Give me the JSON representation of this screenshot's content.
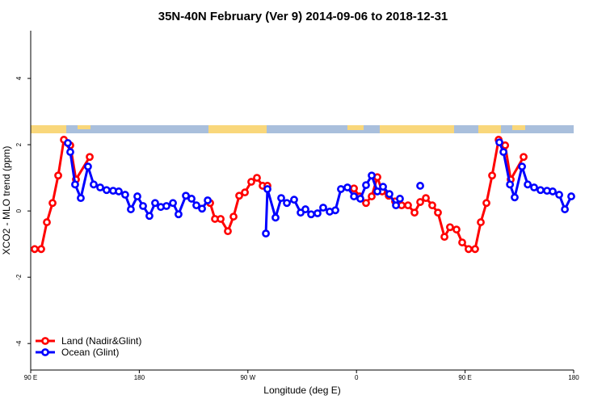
{
  "chart_data": {
    "type": "line",
    "title": "35N-40N February (Ver 9)   2014-09-06 to 2018-12-31",
    "xlabel": "Longitude (deg E)",
    "ylabel": "XCO2 - MLO trend (ppm)",
    "xlim": [
      90,
      540
    ],
    "xticks": [
      {
        "value": 90,
        "label": "90 E"
      },
      180,
      {
        "value": 270,
        "label": "90 W"
      },
      {
        "value": 360,
        "label": "0"
      },
      {
        "value": 450,
        "label": "90 E"
      },
      {
        "value": 540,
        "label": "180"
      }
    ],
    "ylim": [
      -4.8,
      5.44
    ],
    "yticks": [
      -4,
      -2,
      0,
      2,
      4
    ],
    "legend": "bottom left",
    "series": [
      {
        "name": "Land (Nadir&Glint)",
        "color": "#ff0000",
        "x": [
          93.3,
          98.7,
          103.4,
          108.1,
          112.8,
          117.5,
          122.8,
          127.5,
          138.9,
          null,
          238.7,
          242.7,
          247.4,
          253.4,
          258.1,
          262.8,
          267.5,
          272.8,
          277.5,
          282.2,
          286.2,
          null,
          357.9,
          362.5,
          367.9,
          372.6,
          377.3,
          381.3,
          386.7,
          392.0,
          397.4,
          402.7,
          408.1,
          412.8,
          417.5,
          422.8,
          427.5,
          432.9,
          437.5,
          442.9,
          447.6,
          452.9,
          458.3,
          463.0,
          467.7,
          472.4,
          477.8,
          483.2,
          487.8,
          498.5
        ],
        "values": [
          -1.15,
          -1.15,
          -0.34,
          0.24,
          1.07,
          2.15,
          1.98,
          0.95,
          1.63,
          null,
          0.24,
          -0.24,
          -0.24,
          -0.61,
          -0.17,
          0.46,
          0.56,
          0.88,
          1.0,
          0.76,
          0.76,
          null,
          0.68,
          0.44,
          0.24,
          0.44,
          1.02,
          0.59,
          0.46,
          0.29,
          0.17,
          0.17,
          -0.05,
          0.27,
          0.39,
          0.17,
          -0.05,
          -0.78,
          -0.49,
          -0.56,
          -0.95,
          -1.15,
          -1.15,
          -0.34,
          0.24,
          1.07,
          2.15,
          1.98,
          0.95,
          1.63
        ]
      },
      {
        "name": "Ocean (Glint)",
        "color": "#0000ff",
        "x": [
          120.8,
          122.8,
          126.8,
          131.5,
          137.5,
          142.2,
          147.6,
          152.9,
          158.3,
          163.0,
          168.3,
          173.0,
          178.4,
          183.1,
          188.4,
          193.1,
          197.8,
          202.5,
          207.9,
          212.5,
          218.6,
          223.3,
          227.3,
          232.0,
          236.7,
          null,
          284.9,
          286.2,
          292.9,
          297.6,
          302.3,
          308.3,
          313.7,
          317.7,
          322.4,
          327.7,
          332.4,
          337.8,
          342.5,
          347.1,
          352.5,
          357.9,
          363.2,
          367.9,
          372.6,
          377.3,
          382.0,
          387.3,
          392.7,
          396.0,
          null,
          412.8,
          null,
          478.4,
          481.8,
          487.2,
          491.1,
          497.2,
          501.9,
          507.2,
          512.5,
          517.9,
          522.6,
          528.0,
          532.7,
          538.0
        ],
        "values": [
          2.05,
          1.78,
          0.8,
          0.39,
          1.34,
          0.8,
          0.71,
          0.63,
          0.61,
          0.59,
          0.49,
          0.05,
          0.44,
          0.15,
          -0.15,
          0.24,
          0.12,
          0.15,
          0.24,
          -0.1,
          0.46,
          0.37,
          0.17,
          0.07,
          0.32,
          null,
          -0.68,
          0.66,
          -0.2,
          0.39,
          0.24,
          0.34,
          -0.05,
          0.05,
          -0.1,
          -0.07,
          0.1,
          -0.02,
          0.02,
          0.66,
          0.71,
          0.44,
          0.37,
          0.78,
          1.07,
          0.59,
          0.73,
          0.51,
          0.17,
          0.37,
          null,
          0.76,
          null,
          2.07,
          1.78,
          0.8,
          0.41,
          1.34,
          0.8,
          0.71,
          0.63,
          0.61,
          0.59,
          0.49,
          0.05,
          0.44
        ]
      }
    ]
  }
}
